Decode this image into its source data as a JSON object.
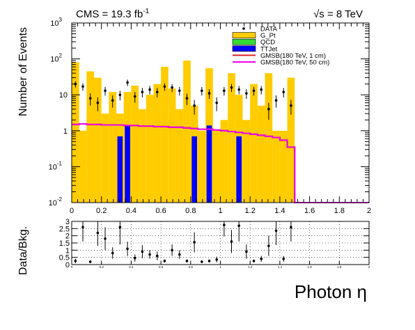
{
  "chart_data": [
    {
      "type": "bar",
      "panel": "main",
      "header_left": "CMS = 19.3 fb",
      "header_left_sup": "-1",
      "header_right": "√s = 8 TeV",
      "ylabel": "Number of Events",
      "xlim": [
        0,
        2
      ],
      "ylim": [
        0.01,
        1000
      ],
      "yscale": "log",
      "grid": false,
      "legend_placement": "top-right",
      "x_ticks": [
        "0",
        "0.2",
        "0.4",
        "0.6",
        "0.8",
        "1",
        "1.2",
        "1.4",
        "1.6",
        "1.8",
        "2"
      ],
      "y_ticks": [
        {
          "base": "10",
          "exp": "-2",
          "value": 0.01
        },
        {
          "base": "10",
          "exp": "-1",
          "value": 0.1
        },
        {
          "base": "1",
          "exp": "",
          "value": 1
        },
        {
          "base": "10",
          "exp": "",
          "value": 10
        },
        {
          "base": "10",
          "exp": "2",
          "value": 100
        },
        {
          "base": "10",
          "exp": "3",
          "value": 1000
        }
      ],
      "bin_edges": [
        0,
        0.05,
        0.1,
        0.15,
        0.2,
        0.25,
        0.3,
        0.35,
        0.4,
        0.45,
        0.5,
        0.55,
        0.6,
        0.65,
        0.7,
        0.75,
        0.8,
        0.85,
        0.9,
        0.95,
        1.0,
        1.05,
        1.1,
        1.15,
        1.2,
        1.25,
        1.3,
        1.35,
        1.4,
        1.45,
        1.5
      ],
      "legend": [
        {
          "label": "DATA",
          "style": "marker",
          "color": "#000000"
        },
        {
          "label": "G_Pt",
          "style": "box",
          "color": "#FFCC00"
        },
        {
          "label": "QCD",
          "style": "box",
          "color": "#33DD33"
        },
        {
          "label": "TTJet",
          "style": "box",
          "color": "#0000FF"
        },
        {
          "label": "GMSB(180 TeV, 1 cm)",
          "style": "line",
          "color": "#DD2222"
        },
        {
          "label": "GMSB(180 TeV, 50 cm)",
          "style": "line",
          "color": "#EE00EE"
        }
      ],
      "series": [
        {
          "name": "G_Pt",
          "color": "#FFCC00",
          "values": [
            80,
            1,
            45,
            30,
            3,
            12,
            3,
            12,
            18,
            4,
            10,
            20,
            60,
            15,
            4,
            90,
            5,
            1,
            55,
            1,
            2,
            40,
            10,
            2,
            20,
            5,
            40,
            1,
            1,
            30
          ]
        },
        {
          "name": "TTJet",
          "color": "#0000FF",
          "values": [
            0,
            0,
            0,
            0,
            0,
            0,
            0.7,
            1.4,
            0,
            0,
            0,
            0,
            0,
            0,
            0,
            0,
            0.7,
            0,
            1.4,
            0,
            0,
            0,
            0.7,
            0,
            0,
            0,
            0,
            0,
            0,
            0
          ]
        },
        {
          "name": "GMSB(180 TeV, 1 cm)",
          "color": "#DD2222",
          "values": [
            1.5,
            1.55,
            1.5,
            1.5,
            1.45,
            1.45,
            1.45,
            1.4,
            1.4,
            1.35,
            1.35,
            1.3,
            1.3,
            1.25,
            1.25,
            1.2,
            1.15,
            1.1,
            1.1,
            1.05,
            1.0,
            0.95,
            0.9,
            0.85,
            0.8,
            0.75,
            0.7,
            0.65,
            0.55,
            0.35
          ]
        },
        {
          "name": "GMSB(180 TeV, 50 cm)",
          "color": "#EE00EE",
          "values": [
            1.5,
            1.55,
            1.5,
            1.5,
            1.45,
            1.45,
            1.45,
            1.4,
            1.4,
            1.35,
            1.35,
            1.3,
            1.3,
            1.25,
            1.25,
            1.2,
            1.15,
            1.1,
            1.1,
            1.05,
            1.0,
            0.95,
            0.9,
            0.85,
            0.8,
            0.75,
            0.7,
            0.65,
            0.55,
            0.35
          ]
        }
      ],
      "data_points": [
        {
          "x": 0.025,
          "y": 20,
          "err": 4
        },
        {
          "x": 0.075,
          "y": 17,
          "err": 4
        },
        {
          "x": 0.125,
          "y": 8,
          "err": 3
        },
        {
          "x": 0.175,
          "y": 6,
          "err": 2.5
        },
        {
          "x": 0.225,
          "y": 13,
          "err": 3.5
        },
        {
          "x": 0.275,
          "y": 7,
          "err": 2.6
        },
        {
          "x": 0.325,
          "y": 10,
          "err": 3
        },
        {
          "x": 0.375,
          "y": 22,
          "err": 4.5
        },
        {
          "x": 0.425,
          "y": 9,
          "err": 3
        },
        {
          "x": 0.475,
          "y": 12,
          "err": 3.5
        },
        {
          "x": 0.525,
          "y": 14,
          "err": 3.7
        },
        {
          "x": 0.575,
          "y": 12,
          "err": 3.5
        },
        {
          "x": 0.625,
          "y": 17,
          "err": 4
        },
        {
          "x": 0.675,
          "y": 16,
          "err": 4
        },
        {
          "x": 0.725,
          "y": 13,
          "err": 3.5
        },
        {
          "x": 0.775,
          "y": 8,
          "err": 2.8
        },
        {
          "x": 0.825,
          "y": 5,
          "err": 2.2
        },
        {
          "x": 0.875,
          "y": 13,
          "err": 3.5
        },
        {
          "x": 0.925,
          "y": 11,
          "err": 3.3
        },
        {
          "x": 0.975,
          "y": 6,
          "err": 2.5
        },
        {
          "x": 1.025,
          "y": 13,
          "err": 3.5
        },
        {
          "x": 1.075,
          "y": 16,
          "err": 4
        },
        {
          "x": 1.125,
          "y": 14,
          "err": 3.7
        },
        {
          "x": 1.175,
          "y": 11,
          "err": 3.3
        },
        {
          "x": 1.225,
          "y": 13,
          "err": 3.5
        },
        {
          "x": 1.275,
          "y": 14,
          "err": 3.7
        },
        {
          "x": 1.325,
          "y": 4,
          "err": 2
        },
        {
          "x": 1.375,
          "y": 7,
          "err": 2.6
        },
        {
          "x": 1.425,
          "y": 12,
          "err": 3.5
        },
        {
          "x": 1.475,
          "y": 5,
          "err": 2.2
        }
      ]
    },
    {
      "type": "scatter",
      "panel": "ratio",
      "ylabel": "Data/Bkg.",
      "xlabel": "Photon η",
      "xlim": [
        0,
        2
      ],
      "ylim": [
        0,
        3
      ],
      "grid": true,
      "x_ticks": [
        "0",
        "0.2",
        "0.4",
        "0.6",
        "0.8",
        "1",
        "1.2",
        "1.4",
        "1.6",
        "1.8",
        "2"
      ],
      "y_ticks": [
        "0",
        "0.5",
        "1",
        "1.5",
        "2",
        "2.5",
        "3"
      ],
      "points": [
        {
          "x": 0.025,
          "y": 0.25,
          "err": 0.15
        },
        {
          "x": 0.075,
          "y": 2.6,
          "err": 1.0
        },
        {
          "x": 0.125,
          "y": 0.2,
          "err": 0.1
        },
        {
          "x": 0.175,
          "y": 2.2,
          "err": 0.9
        },
        {
          "x": 0.225,
          "y": 1.8,
          "err": 0.8
        },
        {
          "x": 0.275,
          "y": 0.8,
          "err": 0.4
        },
        {
          "x": 0.325,
          "y": 2.6,
          "err": 1.2
        },
        {
          "x": 0.375,
          "y": 1.1,
          "err": 0.5
        },
        {
          "x": 0.425,
          "y": 0.45,
          "err": 0.25
        },
        {
          "x": 0.475,
          "y": 0.9,
          "err": 0.45
        },
        {
          "x": 0.525,
          "y": 0.7,
          "err": 0.3
        },
        {
          "x": 0.575,
          "y": 0.6,
          "err": 0.3
        },
        {
          "x": 0.625,
          "y": 0.25,
          "err": 0.1
        },
        {
          "x": 0.675,
          "y": 1.0,
          "err": 0.4
        },
        {
          "x": 0.725,
          "y": 0.7,
          "err": 0.3
        },
        {
          "x": 0.775,
          "y": 0.25,
          "err": 0.1
        },
        {
          "x": 0.825,
          "y": 1.55,
          "err": 0.7
        },
        {
          "x": 0.875,
          "y": 0.2,
          "err": 0.1
        },
        {
          "x": 0.925,
          "y": 0.25,
          "err": 0.1
        },
        {
          "x": 0.975,
          "y": 0.35,
          "err": 0.2
        },
        {
          "x": 1.025,
          "y": 2.75,
          "err": 0.8
        },
        {
          "x": 1.075,
          "y": 1.6,
          "err": 0.8
        },
        {
          "x": 1.125,
          "y": 2.7,
          "err": 1.1
        },
        {
          "x": 1.175,
          "y": 0.9,
          "err": 0.5
        },
        {
          "x": 1.225,
          "y": 0.25,
          "err": 0.1
        },
        {
          "x": 1.275,
          "y": 0.4,
          "err": 0.2
        },
        {
          "x": 1.325,
          "y": 1.3,
          "err": 0.7
        },
        {
          "x": 1.375,
          "y": 2.35,
          "err": 1.0
        },
        {
          "x": 1.425,
          "y": 0.4,
          "err": 0.2
        },
        {
          "x": 1.475,
          "y": 2.6,
          "err": 1.0
        }
      ]
    }
  ]
}
